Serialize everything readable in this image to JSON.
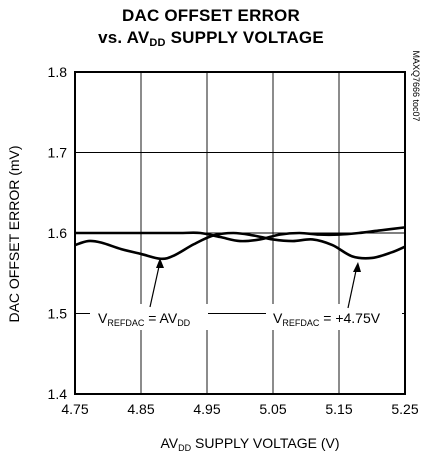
{
  "chart_data": {
    "type": "line",
    "title_line1": "DAC OFFSET ERROR",
    "title_line2_prefix": "vs. AV",
    "title_line2_sub": "DD",
    "title_line2_suffix": " SUPPLY VOLTAGE",
    "xlabel_prefix": "AV",
    "xlabel_sub": "DD",
    "xlabel_suffix": " SUPPLY VOLTAGE (V)",
    "ylabel": "DAC OFFSET ERROR (mV)",
    "xlim": [
      4.75,
      5.25
    ],
    "ylim": [
      1.4,
      1.8
    ],
    "x_ticks": [
      "4.75",
      "4.85",
      "4.95",
      "5.05",
      "5.15",
      "5.25"
    ],
    "y_ticks": [
      "1.4",
      "1.5",
      "1.6",
      "1.7",
      "1.8"
    ],
    "grid": true,
    "watermark": "MAXQ7666 toc07",
    "series": [
      {
        "label_prefix": "V",
        "label_sub": "REFDAC",
        "label_suffix": " = AV",
        "label_sub2": "DD",
        "x": [
          4.75,
          4.77,
          4.79,
          4.81,
          4.84,
          4.87,
          4.89,
          4.91,
          4.94,
          4.97,
          5.0,
          5.03,
          5.06,
          5.09,
          5.12,
          5.15,
          5.18,
          5.21,
          5.25
        ],
        "values": [
          1.6,
          1.6,
          1.6,
          1.6,
          1.6,
          1.6,
          1.6,
          1.6,
          1.6,
          1.595,
          1.59,
          1.592,
          1.598,
          1.6,
          1.598,
          1.598,
          1.6,
          1.603,
          1.607
        ]
      },
      {
        "label_prefix": "V",
        "label_sub": "REFDAC",
        "label_suffix": " = +4.75V",
        "label_sub2": "",
        "x": [
          4.75,
          4.77,
          4.79,
          4.82,
          4.85,
          4.88,
          4.9,
          4.93,
          4.96,
          4.99,
          5.02,
          5.05,
          5.08,
          5.11,
          5.14,
          5.17,
          5.2,
          5.23,
          5.25
        ],
        "values": [
          1.585,
          1.59,
          1.588,
          1.58,
          1.574,
          1.568,
          1.572,
          1.586,
          1.597,
          1.6,
          1.597,
          1.592,
          1.59,
          1.592,
          1.585,
          1.571,
          1.569,
          1.576,
          1.583
        ]
      }
    ]
  }
}
